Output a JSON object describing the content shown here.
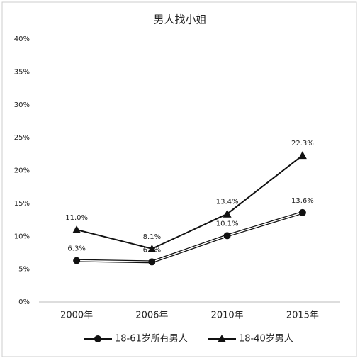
{
  "chart_data": {
    "type": "line",
    "title": "男人找小姐",
    "categories": [
      "2000年",
      "2006年",
      "2010年",
      "2015年"
    ],
    "series": [
      {
        "name": "18-61岁所有男人",
        "color": "#111111",
        "marker": "circle",
        "style": "double",
        "values": [
          6.3,
          6.1,
          10.1,
          13.6
        ],
        "value_labels": [
          "6.3%",
          "6.1%",
          "10.1%",
          "13.6%"
        ]
      },
      {
        "name": "18-40岁男人",
        "color": "#111111",
        "marker": "triangle",
        "style": "solid",
        "values": [
          11.0,
          8.1,
          13.4,
          22.3
        ],
        "value_labels": [
          "11.0%",
          "8.1%",
          "13.4%",
          "22.3%"
        ]
      }
    ],
    "ylim": [
      0,
      40
    ],
    "yticks": [
      {
        "value": 0,
        "label": "0%"
      },
      {
        "value": 5,
        "label": "5%"
      },
      {
        "value": 10,
        "label": "10%"
      },
      {
        "value": 15,
        "label": "15%"
      },
      {
        "value": 20,
        "label": "20%"
      },
      {
        "value": 25,
        "label": "25%"
      },
      {
        "value": 30,
        "label": "30%"
      },
      {
        "value": 35,
        "label": "35%"
      },
      {
        "value": 40,
        "label": "40%"
      }
    ],
    "grid": false,
    "legend": "bottom"
  }
}
